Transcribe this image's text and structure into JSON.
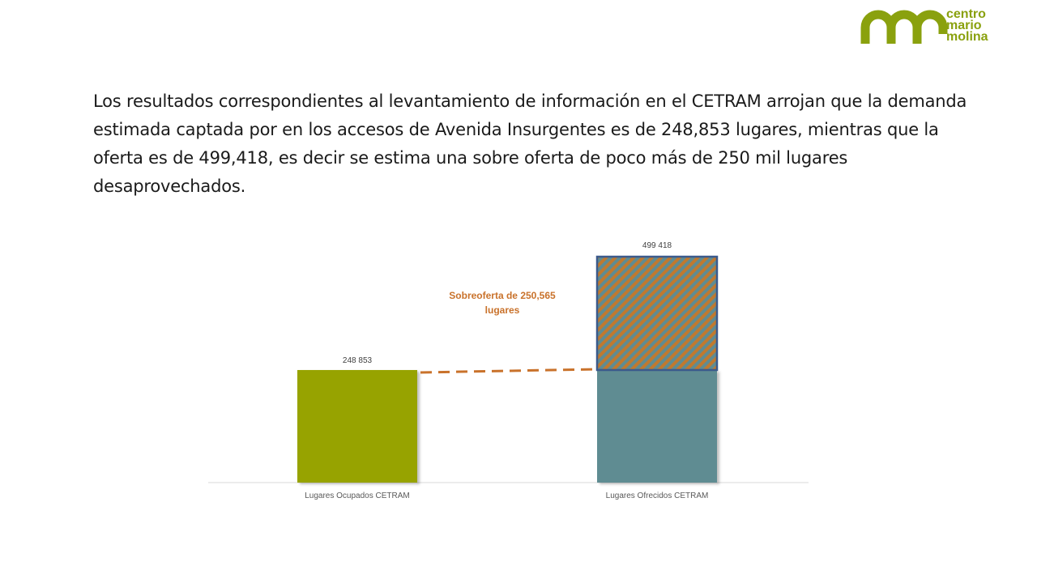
{
  "logo": {
    "icon": "cmm-logo-icon",
    "lines": [
      "centro",
      "mario",
      "molina"
    ],
    "color": "#8aa10e"
  },
  "paragraph": "Los resultados correspondientes al levantamiento de información en el CETRAM arrojan que  la demanda estimada captada por en los accesos de Avenida Insurgentes es de 248,853 lugares, mientras que la oferta es de 499,418, es decir se estima una sobre oferta de poco más de 250 mil lugares desaprovechados.",
  "chart_data": {
    "type": "bar",
    "categories": [
      "Lugares Ocupados CETRAM",
      "Lugares Ofrecidos CETRAM"
    ],
    "values": [
      248853,
      499418
    ],
    "data_labels": [
      "248 853",
      "499 418"
    ],
    "ylim": [
      0,
      499418
    ],
    "grid": false,
    "annotation": {
      "lines": [
        "Sobreoferta de 250,565",
        "lugares"
      ],
      "value": 250565,
      "color": "#c9722b"
    },
    "colors": {
      "occupied": "#97a306",
      "offered": "#5f8c92",
      "surplus_stripe_a": "#c0792f",
      "surplus_stripe_b": "#5f8c92",
      "surplus_border": "#3c5a8c",
      "dashed_line": "#c9722b",
      "axis": "#d9d9d9"
    }
  }
}
